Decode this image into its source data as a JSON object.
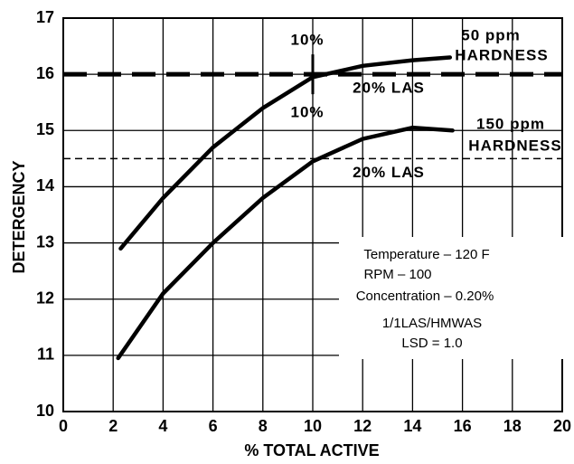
{
  "chart_data": {
    "type": "line",
    "xlabel": "% TOTAL ACTIVE",
    "ylabel": "DETERGENCY",
    "xlim": [
      0,
      20
    ],
    "xticks": [
      0,
      2,
      4,
      6,
      8,
      10,
      12,
      14,
      16,
      18,
      20
    ],
    "ylim": [
      10,
      17
    ],
    "yticks": [
      10,
      11,
      12,
      13,
      14,
      15,
      16,
      17
    ],
    "grid": true,
    "series": [
      {
        "name": "50 ppm",
        "color": "#000000",
        "x": [
          2.3,
          4,
          6,
          8,
          10,
          12,
          14,
          15.5
        ],
        "values": [
          12.9,
          13.8,
          14.7,
          15.4,
          15.95,
          16.15,
          16.25,
          16.3
        ]
      },
      {
        "name": "150 ppm",
        "color": "#000000",
        "x": [
          2.2,
          4,
          6,
          8,
          10,
          12,
          14,
          15.6
        ],
        "values": [
          10.95,
          12.1,
          13.0,
          13.8,
          14.45,
          14.85,
          15.05,
          15.0
        ]
      }
    ],
    "reference_lines": [
      {
        "value": 16,
        "label": "20% LAS",
        "style": "thick"
      },
      {
        "value": 14.5,
        "label": "20% LAS",
        "style": "thin"
      }
    ],
    "annotations": [
      "HARDNESS",
      "HARDNESS",
      "10%",
      "10%",
      "Temperature – 120 F",
      "RPM – 100",
      "Concentration – 0.20%",
      "1/1LAS/HMWAS",
      "LSD = 1.0"
    ]
  }
}
